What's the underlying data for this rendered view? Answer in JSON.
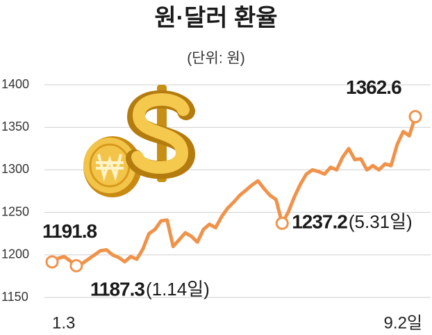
{
  "chart_data": {
    "type": "line",
    "title": "원·달러 환율",
    "subtitle": "(단위: 원)",
    "categories": [
      "1.3",
      null,
      null,
      null,
      null,
      null,
      null,
      null,
      null,
      null,
      null,
      null,
      null,
      null,
      null,
      null,
      null,
      null,
      null,
      null,
      null,
      null,
      null,
      null,
      null,
      null,
      null,
      null,
      null,
      null,
      null,
      null,
      null,
      null,
      null,
      null,
      null,
      null,
      null,
      null,
      null,
      null,
      null,
      null,
      null,
      null,
      null,
      null,
      null,
      null,
      null,
      null,
      null,
      null,
      null,
      null,
      null,
      null,
      null,
      null,
      "9.2일"
    ],
    "series": [
      {
        "name": null,
        "color": "#f0924a",
        "values": [
          1191.8,
          1196,
          1198,
          1193,
          1187.3,
          1190,
          1195,
          1200,
          1205,
          1206,
          1200,
          1197,
          1192,
          1198,
          1195,
          1207,
          1225,
          1230,
          1240,
          1241,
          1210,
          1218,
          1226,
          1222,
          1215,
          1230,
          1236,
          1232,
          1245,
          1255,
          1262,
          1270,
          1276,
          1282,
          1287,
          1278,
          1270,
          1265,
          1237.2,
          1250,
          1268,
          1283,
          1295,
          1300,
          1298,
          1295,
          1303,
          1300,
          1315,
          1325,
          1312,
          1313,
          1300,
          1305,
          1300,
          1307,
          1305,
          1330,
          1345,
          1340,
          1362.6
        ],
        "value_labels": [
          "1191.8",
          null,
          null,
          null,
          "1187.3",
          null,
          null,
          null,
          null,
          null,
          null,
          null,
          null,
          null,
          null,
          null,
          null,
          null,
          null,
          null,
          null,
          null,
          null,
          null,
          null,
          null,
          null,
          null,
          null,
          null,
          null,
          null,
          null,
          null,
          null,
          null,
          null,
          null,
          "1237.2",
          null,
          null,
          null,
          null,
          null,
          null,
          null,
          null,
          null,
          null,
          null,
          null,
          null,
          null,
          null,
          null,
          null,
          null,
          null,
          null,
          null,
          "1362.6"
        ]
      }
    ],
    "annotations": [
      "(1.14일)",
      "(5.31일)"
    ],
    "ylim": [
      1150,
      1400
    ],
    "yticks": [
      1150,
      1200,
      1250,
      1300,
      1350,
      1400
    ],
    "grid": true
  }
}
